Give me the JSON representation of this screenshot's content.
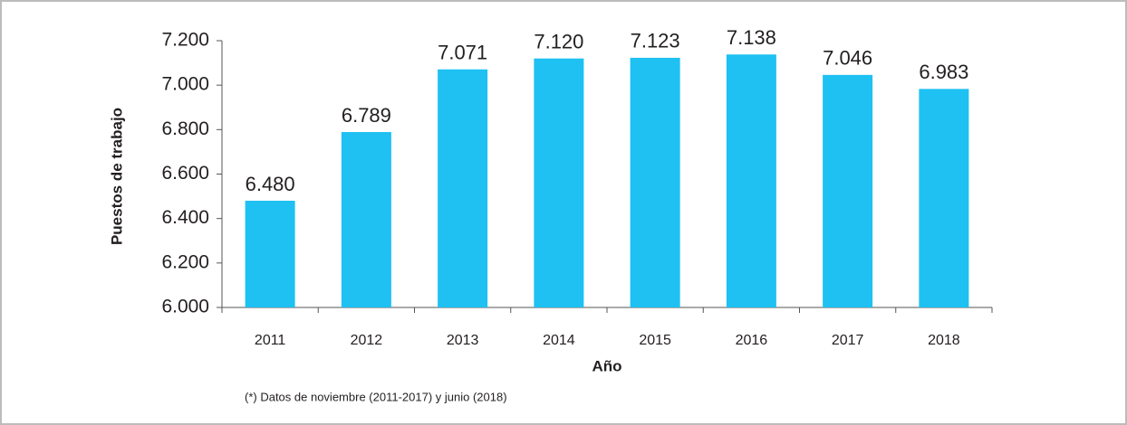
{
  "chart_data": {
    "type": "bar",
    "categories": [
      "2011",
      "2012",
      "2013",
      "2014",
      "2015",
      "2016",
      "2017",
      "2018"
    ],
    "values": [
      6480,
      6789,
      7071,
      7120,
      7123,
      7138,
      7046,
      6983
    ],
    "value_labels": [
      "6.480",
      "6.789",
      "7.071",
      "7.120",
      "7.123",
      "7.138",
      "7.046",
      "6.983"
    ],
    "color": "#1ec1f1",
    "ylim": [
      6000,
      7200
    ],
    "yticks": [
      {
        "value": 6000,
        "label": "6.000"
      },
      {
        "value": 6200,
        "label": "6.200"
      },
      {
        "value": 6400,
        "label": "6.400"
      },
      {
        "value": 6600,
        "label": "6.600"
      },
      {
        "value": 6800,
        "label": "6.800"
      },
      {
        "value": 7000,
        "label": "7.000"
      },
      {
        "value": 7200,
        "label": "7.200"
      }
    ],
    "y_label": "Puestos de trabajo",
    "x_label": "Año",
    "footnote": "(*) Datos de noviembre (2011-2017) y junio (2018)"
  }
}
